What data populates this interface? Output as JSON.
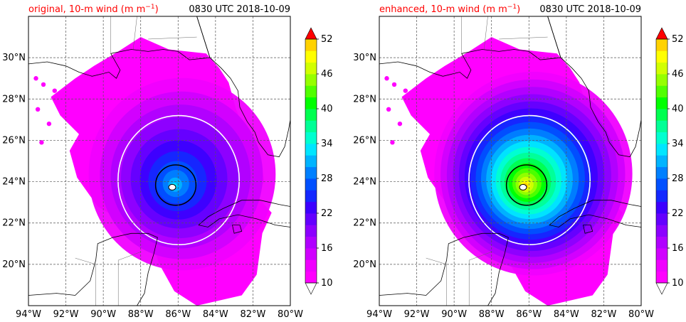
{
  "panels": [
    {
      "id": "original",
      "title_left": "original, 10-m wind (m m",
      "title_left_sup": "−1",
      "title_left_end": ")",
      "title_left_color": "#ff0000",
      "title_right": "0830 UTC 2018-10-09",
      "storm_center": {
        "lon": -86.2,
        "lat": 23.8
      },
      "wind_field": {
        "core_max": 32,
        "inner_ring_level": 32,
        "outer_contour_level": 18
      }
    },
    {
      "id": "enhanced",
      "title_left": "enhanced, 10-m wind (m m",
      "title_left_sup": "−1",
      "title_left_end": ")",
      "title_left_color": "#ff0000",
      "title_right": "0830 UTC 2018-10-09",
      "storm_center": {
        "lon": -86.2,
        "lat": 23.8
      },
      "wind_field": {
        "core_max": 50,
        "inner_ring_level": 32,
        "outer_contour_level": 18
      }
    }
  ],
  "map": {
    "lon_range": [
      -94,
      -80
    ],
    "lat_range": [
      18,
      32
    ],
    "x_ticks": [
      "94°W",
      "92°W",
      "90°W",
      "88°W",
      "86°W",
      "84°W",
      "82°W",
      "80°W"
    ],
    "y_ticks": [
      "20°N",
      "22°N",
      "24°N",
      "26°N",
      "28°N",
      "30°N"
    ],
    "gridlines": true
  },
  "colorbar": {
    "min": 10,
    "max": 52,
    "step": 2,
    "tick_labels": [
      "10",
      "16",
      "22",
      "28",
      "34",
      "40",
      "46",
      "52"
    ],
    "extend": "both",
    "colors": [
      "#ff00ff",
      "#f000ff",
      "#d000ff",
      "#b000ff",
      "#8c00ff",
      "#6400ff",
      "#3c00ff",
      "#1428ff",
      "#0050ff",
      "#0080ff",
      "#00b4ff",
      "#00e6ff",
      "#00ffd0",
      "#00ff96",
      "#00ff50",
      "#00ff00",
      "#50ff00",
      "#96ff00",
      "#d2ff00",
      "#ffff00",
      "#ffd200",
      "#ffa500",
      "#ff7800",
      "#ff4000",
      "#ff0000"
    ]
  }
}
